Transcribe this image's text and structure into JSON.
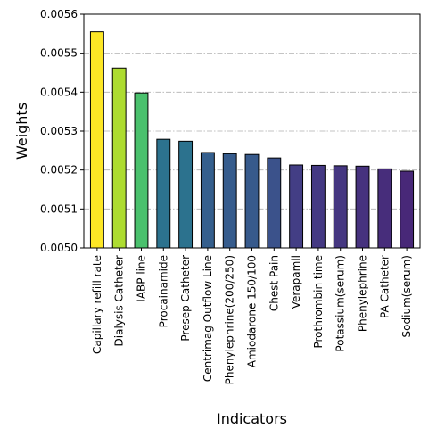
{
  "chart_data": {
    "type": "bar",
    "title": "",
    "xlabel": "Indicators",
    "ylabel": "Weights",
    "ylim": [
      0.005,
      0.0056
    ],
    "yticks": [
      "0.0050",
      "0.0051",
      "0.0052",
      "0.0053",
      "0.0054",
      "0.0055",
      "0.0056"
    ],
    "ytick_values": [
      0.005,
      0.0051,
      0.0052,
      0.0053,
      0.0054,
      0.0055,
      0.0056
    ],
    "grid": "horizontal dash-dot",
    "legend": "none",
    "categories": [
      "Capillary refill rate",
      "Dialysis Catheter",
      "IABP line",
      "Procainamide",
      "Presep Catheter",
      "Centrimag Outflow Line",
      "Phenylephrine(200/250)",
      "Amiodarone 150/100",
      "Chest Pain",
      "Verapamil",
      "Prothrombin time",
      "Potassium(serum)",
      "Phenylephrine",
      "PA Catheter",
      "Sodium(serum)"
    ],
    "values": [
      0.005555,
      0.005462,
      0.005398,
      0.005279,
      0.005274,
      0.005245,
      0.005242,
      0.00524,
      0.005231,
      0.005213,
      0.005212,
      0.005211,
      0.00521,
      0.005203,
      0.005197
    ],
    "colors": [
      "#fde725",
      "#addc30",
      "#4ac16d",
      "#2c728e",
      "#2c728e",
      "#355f8d",
      "#365c8d",
      "#375a8c",
      "#3b528b",
      "#433e85",
      "#443983",
      "#453781",
      "#46327e",
      "#472d7b",
      "#482878"
    ]
  }
}
